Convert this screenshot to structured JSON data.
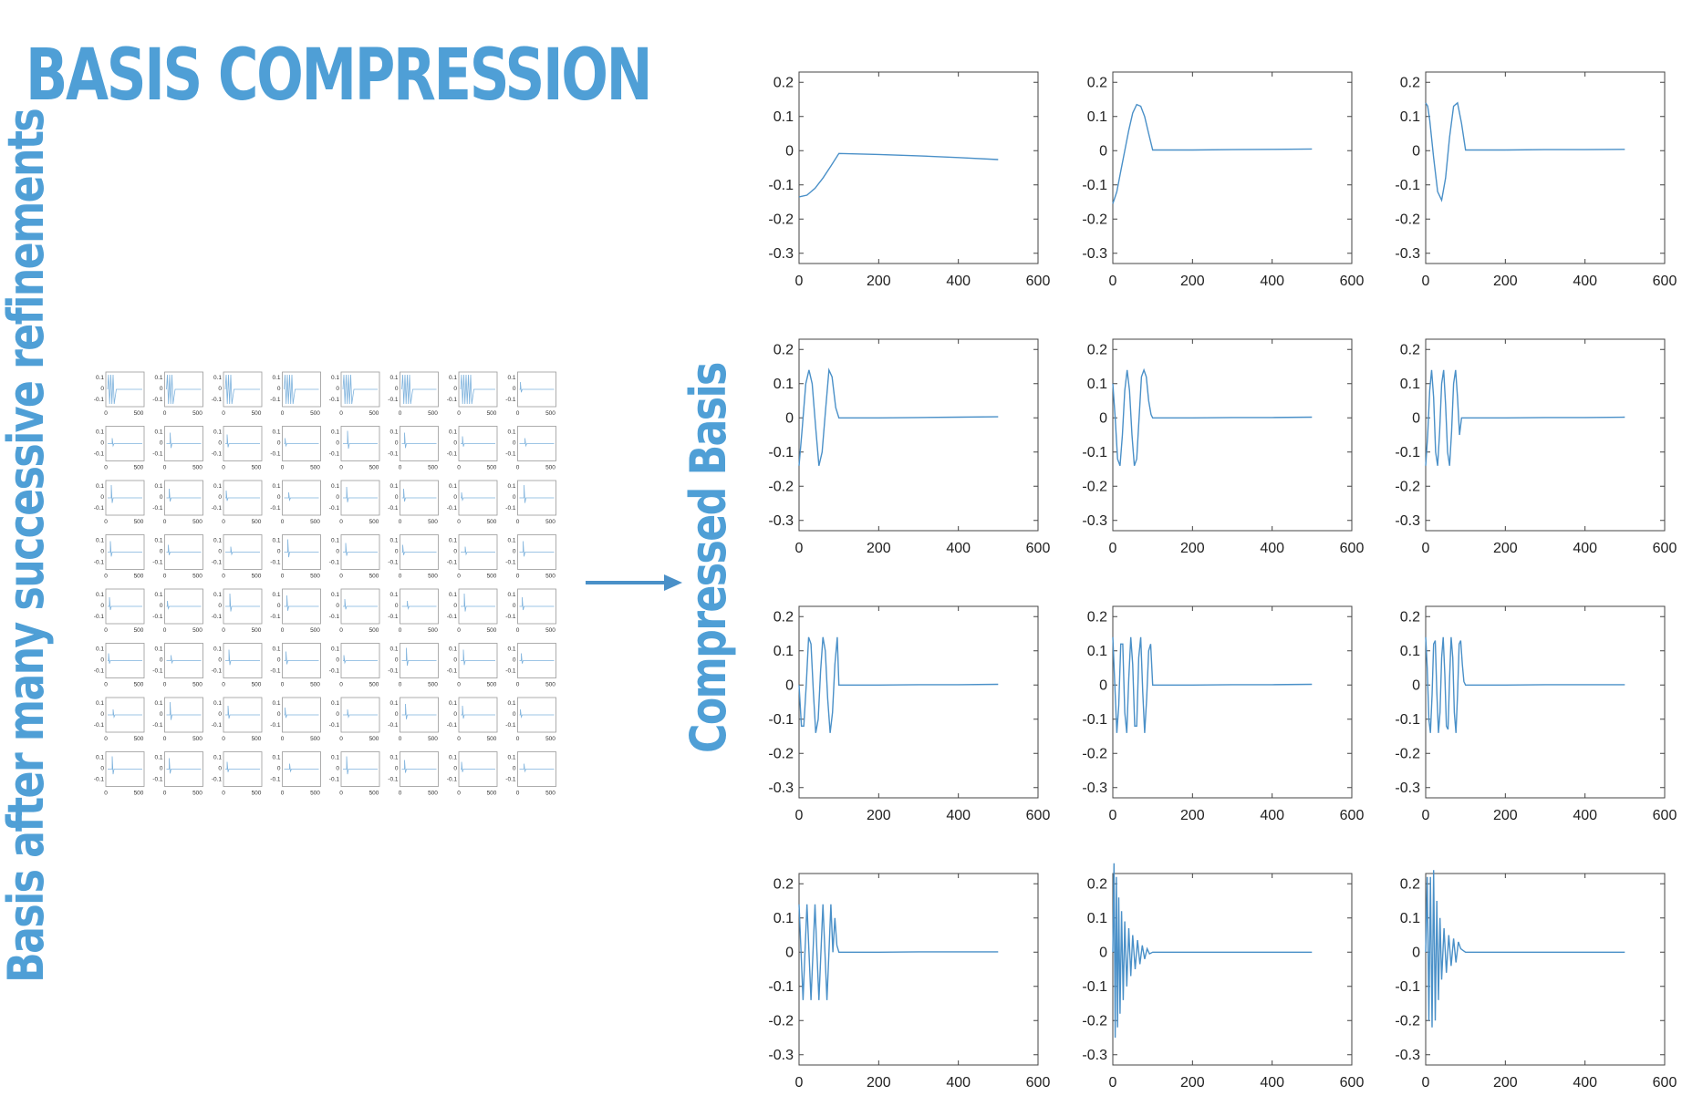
{
  "title": "BASIS COMPRESSION",
  "left_label": "Basis after many successive refinements",
  "right_label": "Compressed Basis",
  "accent_color": "#4f9fd6",
  "line_color": "#4a90c8",
  "chart_data": [
    {
      "type": "line",
      "grid": false,
      "xlim": [
        0,
        600
      ],
      "ylim": [
        -0.33,
        0.23
      ],
      "xticks": [
        "0",
        "200",
        "400",
        "600"
      ],
      "yticks": [
        "0.2",
        "0.1",
        "0",
        "-0.1",
        "-0.2",
        "-0.3"
      ],
      "ytick_values": [
        0.2,
        0.1,
        0,
        -0.1,
        -0.2,
        -0.3
      ],
      "xtick_values": [
        0,
        200,
        400,
        600
      ],
      "series": [
        {
          "x": [
            0,
            20,
            40,
            60,
            80,
            100,
            200,
            300,
            400,
            500
          ],
          "y": [
            -0.135,
            -0.13,
            -0.11,
            -0.08,
            -0.045,
            -0.008,
            -0.011,
            -0.015,
            -0.02,
            -0.026
          ]
        }
      ]
    },
    {
      "type": "line",
      "grid": false,
      "xlim": [
        0,
        600
      ],
      "ylim": [
        -0.33,
        0.23
      ],
      "xticks": [
        "0",
        "200",
        "400",
        "600"
      ],
      "yticks": [
        "0.2",
        "0.1",
        "0",
        "-0.1",
        "-0.2",
        "-0.3"
      ],
      "ytick_values": [
        0.2,
        0.1,
        0,
        -0.1,
        -0.2,
        -0.3
      ],
      "xtick_values": [
        0,
        200,
        400,
        600
      ],
      "series": [
        {
          "x": [
            0,
            10,
            20,
            30,
            40,
            50,
            60,
            70,
            80,
            90,
            100,
            200,
            300,
            400,
            500
          ],
          "y": [
            -0.155,
            -0.12,
            -0.06,
            0.0,
            0.06,
            0.11,
            0.135,
            0.13,
            0.1,
            0.05,
            0.002,
            0.002,
            0.003,
            0.004,
            0.005
          ]
        }
      ]
    },
    {
      "type": "line",
      "grid": false,
      "xlim": [
        0,
        600
      ],
      "ylim": [
        -0.33,
        0.23
      ],
      "xticks": [
        "0",
        "200",
        "400",
        "600"
      ],
      "yticks": [
        "0.2",
        "0.1",
        "0",
        "-0.1",
        "-0.2",
        "-0.3"
      ],
      "ytick_values": [
        0.2,
        0.1,
        0,
        -0.1,
        -0.2,
        -0.3
      ],
      "xtick_values": [
        0,
        200,
        400,
        600
      ],
      "series": [
        {
          "x": [
            0,
            5,
            10,
            20,
            30,
            40,
            50,
            60,
            70,
            80,
            90,
            100,
            200,
            300,
            400,
            500
          ],
          "y": [
            0.14,
            0.13,
            0.09,
            -0.02,
            -0.12,
            -0.145,
            -0.08,
            0.04,
            0.13,
            0.14,
            0.08,
            0.002,
            0.002,
            0.003,
            0.003,
            0.004
          ]
        }
      ]
    },
    {
      "type": "line",
      "grid": false,
      "xlim": [
        0,
        600
      ],
      "ylim": [
        -0.33,
        0.23
      ],
      "xticks": [
        "0",
        "200",
        "400",
        "600"
      ],
      "yticks": [
        "0.2",
        "0.1",
        "0",
        "-0.1",
        "-0.2",
        "-0.3"
      ],
      "ytick_values": [
        0.2,
        0.1,
        0,
        -0.1,
        -0.2,
        -0.3
      ],
      "xtick_values": [
        0,
        200,
        400,
        600
      ],
      "series": [
        {
          "x": [
            0,
            8,
            17,
            25,
            33,
            42,
            50,
            58,
            67,
            75,
            83,
            92,
            100,
            200,
            300,
            400,
            500
          ],
          "y": [
            -0.14,
            -0.03,
            0.1,
            0.14,
            0.1,
            -0.03,
            -0.14,
            -0.1,
            0.03,
            0.14,
            0.12,
            0.03,
            0.0,
            0.0,
            0.001,
            0.002,
            0.003
          ]
        }
      ]
    },
    {
      "type": "line",
      "grid": false,
      "xlim": [
        0,
        600
      ],
      "ylim": [
        -0.33,
        0.23
      ],
      "xticks": [
        "0",
        "200",
        "400",
        "600"
      ],
      "yticks": [
        "0.2",
        "0.1",
        "0",
        "-0.1",
        "-0.2",
        "-0.3"
      ],
      "ytick_values": [
        0.2,
        0.1,
        0,
        -0.1,
        -0.2,
        -0.3
      ],
      "xtick_values": [
        0,
        200,
        400,
        600
      ],
      "series": [
        {
          "x": [
            0,
            6,
            12,
            18,
            24,
            30,
            36,
            42,
            48,
            54,
            60,
            66,
            72,
            78,
            84,
            90,
            96,
            100,
            200,
            300,
            400,
            500
          ],
          "y": [
            0.1,
            0.0,
            -0.12,
            -0.14,
            -0.05,
            0.08,
            0.14,
            0.08,
            -0.05,
            -0.14,
            -0.12,
            0.0,
            0.12,
            0.14,
            0.12,
            0.05,
            0.01,
            0.0,
            0.0,
            0.001,
            0.001,
            0.002
          ]
        }
      ]
    },
    {
      "type": "line",
      "grid": false,
      "xlim": [
        0,
        600
      ],
      "ylim": [
        -0.33,
        0.23
      ],
      "xticks": [
        "0",
        "200",
        "400",
        "600"
      ],
      "yticks": [
        "0.2",
        "0.1",
        "0",
        "-0.1",
        "-0.2",
        "-0.3"
      ],
      "ytick_values": [
        0.2,
        0.1,
        0,
        -0.1,
        -0.2,
        -0.3
      ],
      "xtick_values": [
        0,
        200,
        400,
        600
      ],
      "series": [
        {
          "x": [
            0,
            5,
            10,
            15,
            20,
            25,
            30,
            35,
            40,
            45,
            50,
            55,
            60,
            65,
            70,
            75,
            80,
            85,
            90,
            95,
            100,
            200,
            300,
            400,
            500
          ],
          "y": [
            -0.14,
            -0.05,
            0.08,
            0.14,
            0.06,
            -0.1,
            -0.14,
            -0.04,
            0.1,
            0.14,
            0.04,
            -0.1,
            -0.14,
            -0.04,
            0.1,
            0.14,
            0.06,
            -0.05,
            0.0,
            0.0,
            0.0,
            0.0,
            0.001,
            0.001,
            0.002
          ]
        }
      ]
    },
    {
      "type": "line",
      "grid": false,
      "xlim": [
        0,
        600
      ],
      "ylim": [
        -0.33,
        0.23
      ],
      "xticks": [
        "0",
        "200",
        "400",
        "600"
      ],
      "yticks": [
        "0.2",
        "0.1",
        "0",
        "-0.1",
        "-0.2",
        "-0.3"
      ],
      "ytick_values": [
        0.2,
        0.1,
        0,
        -0.1,
        -0.2,
        -0.3
      ],
      "xtick_values": [
        0,
        200,
        400,
        600
      ],
      "series": [
        {
          "x": [
            0,
            6,
            12,
            18,
            24,
            30,
            36,
            42,
            48,
            54,
            60,
            66,
            72,
            78,
            84,
            90,
            96,
            100,
            200,
            300,
            400,
            500
          ],
          "y": [
            0.0,
            -0.12,
            -0.12,
            0.0,
            0.14,
            0.12,
            -0.02,
            -0.14,
            -0.1,
            0.04,
            0.14,
            0.1,
            -0.04,
            -0.14,
            -0.08,
            0.06,
            0.14,
            0.0,
            0.0,
            0.001,
            0.001,
            0.002
          ]
        }
      ]
    },
    {
      "type": "line",
      "grid": false,
      "xlim": [
        0,
        600
      ],
      "ylim": [
        -0.33,
        0.23
      ],
      "xticks": [
        "0",
        "200",
        "400",
        "600"
      ],
      "yticks": [
        "0.2",
        "0.1",
        "0",
        "-0.1",
        "-0.2",
        "-0.3"
      ],
      "ytick_values": [
        0.2,
        0.1,
        0,
        -0.1,
        -0.2,
        -0.3
      ],
      "xtick_values": [
        0,
        200,
        400,
        600
      ],
      "series": [
        {
          "x": [
            0,
            5,
            10,
            15,
            20,
            25,
            30,
            35,
            40,
            45,
            50,
            55,
            60,
            65,
            70,
            75,
            80,
            85,
            90,
            95,
            100,
            200,
            300,
            400,
            500
          ],
          "y": [
            0.14,
            0.0,
            -0.14,
            -0.06,
            0.12,
            0.12,
            -0.08,
            -0.14,
            0.02,
            0.14,
            0.06,
            -0.12,
            -0.12,
            0.08,
            0.14,
            -0.02,
            -0.14,
            -0.04,
            0.1,
            0.12,
            0.0,
            0.0,
            0.001,
            0.001,
            0.002
          ]
        }
      ]
    },
    {
      "type": "line",
      "grid": false,
      "xlim": [
        0,
        600
      ],
      "ylim": [
        -0.33,
        0.23
      ],
      "xticks": [
        "0",
        "200",
        "400",
        "600"
      ],
      "yticks": [
        "0.2",
        "0.1",
        "0",
        "-0.1",
        "-0.2",
        "-0.3"
      ],
      "ytick_values": [
        0.2,
        0.1,
        0,
        -0.1,
        -0.2,
        -0.3
      ],
      "xtick_values": [
        0,
        200,
        400,
        600
      ],
      "series": [
        {
          "x": [
            0,
            4,
            8,
            12,
            16,
            20,
            24,
            28,
            32,
            36,
            40,
            44,
            48,
            52,
            56,
            60,
            64,
            68,
            72,
            76,
            80,
            84,
            88,
            92,
            96,
            100,
            200,
            300,
            400,
            500
          ],
          "y": [
            0.14,
            0.05,
            -0.1,
            -0.14,
            -0.03,
            0.12,
            0.13,
            -0.02,
            -0.14,
            -0.08,
            0.08,
            0.14,
            0.03,
            -0.12,
            -0.13,
            0.02,
            0.14,
            0.08,
            -0.08,
            -0.14,
            -0.03,
            0.12,
            0.13,
            0.06,
            0.01,
            0.0,
            0.0,
            0.001,
            0.001,
            0.001
          ]
        }
      ]
    },
    {
      "type": "line",
      "grid": false,
      "xlim": [
        0,
        600
      ],
      "ylim": [
        -0.33,
        0.23
      ],
      "xticks": [
        "0",
        "200",
        "400",
        "600"
      ],
      "yticks": [
        "0.2",
        "0.1",
        "0",
        "-0.1",
        "-0.2",
        "-0.3"
      ],
      "ytick_values": [
        0.2,
        0.1,
        0,
        -0.1,
        -0.2,
        -0.3
      ],
      "xtick_values": [
        0,
        200,
        400,
        600
      ],
      "series": [
        {
          "x": [
            0,
            5,
            10,
            15,
            20,
            25,
            30,
            35,
            40,
            45,
            50,
            55,
            60,
            65,
            70,
            75,
            80,
            85,
            90,
            95,
            100,
            200,
            300,
            400,
            500
          ],
          "y": [
            0.14,
            0.0,
            -0.14,
            0.0,
            0.14,
            0.0,
            -0.14,
            0.0,
            0.14,
            0.0,
            -0.14,
            0.0,
            0.14,
            0.0,
            -0.14,
            0.0,
            0.14,
            0.0,
            0.1,
            0.02,
            0.0,
            0.0,
            0.001,
            0.001,
            0.001
          ]
        }
      ]
    },
    {
      "type": "line",
      "grid": false,
      "xlim": [
        0,
        600
      ],
      "ylim": [
        -0.33,
        0.23
      ],
      "xticks": [
        "0",
        "200",
        "400",
        "600"
      ],
      "yticks": [
        "0.2",
        "0.1",
        "0",
        "-0.1",
        "-0.2",
        "-0.3"
      ],
      "ytick_values": [
        0.2,
        0.1,
        0,
        -0.1,
        -0.2,
        -0.3
      ],
      "xtick_values": [
        0,
        200,
        400,
        600
      ],
      "series": [
        {
          "x": [
            0,
            3,
            6,
            9,
            12,
            15,
            18,
            22,
            26,
            30,
            35,
            40,
            45,
            50,
            56,
            62,
            68,
            74,
            80,
            86,
            92,
            100,
            200,
            300,
            400,
            500
          ],
          "y": [
            0.0,
            0.26,
            -0.25,
            0.22,
            -0.22,
            0.16,
            -0.18,
            0.12,
            -0.14,
            0.09,
            -0.1,
            0.07,
            -0.07,
            0.05,
            -0.05,
            0.035,
            -0.035,
            0.02,
            -0.02,
            0.01,
            -0.005,
            0.0,
            0.0,
            0.0,
            0.0,
            0.0
          ]
        }
      ]
    },
    {
      "type": "line",
      "grid": false,
      "xlim": [
        0,
        600
      ],
      "ylim": [
        -0.33,
        0.23
      ],
      "xticks": [
        "0",
        "200",
        "400",
        "600"
      ],
      "yticks": [
        "0.2",
        "0.1",
        "0",
        "-0.1",
        "-0.2",
        "-0.3"
      ],
      "ytick_values": [
        0.2,
        0.1,
        0,
        -0.1,
        -0.2,
        -0.3
      ],
      "xtick_values": [
        0,
        200,
        400,
        600
      ],
      "series": [
        {
          "x": [
            0,
            4,
            8,
            12,
            16,
            20,
            24,
            28,
            32,
            36,
            40,
            46,
            52,
            58,
            64,
            70,
            76,
            82,
            88,
            94,
            100,
            200,
            300,
            400,
            500
          ],
          "y": [
            0.0,
            0.22,
            -0.2,
            0.22,
            -0.22,
            0.24,
            -0.2,
            0.15,
            -0.14,
            0.1,
            -0.08,
            0.07,
            -0.06,
            0.05,
            -0.04,
            0.04,
            -0.03,
            0.03,
            0.01,
            0.005,
            0.0,
            0.0,
            0.0,
            0.0,
            0.0
          ]
        }
      ]
    }
  ],
  "thumbnails": {
    "rows": 8,
    "cols": 8,
    "ytick_labels": [
      "0.1",
      "0",
      "-0.1"
    ],
    "xtick_labels": [
      "0",
      "500"
    ],
    "ylim": [
      -0.15,
      0.15
    ],
    "xlim": [
      0,
      500
    ]
  }
}
